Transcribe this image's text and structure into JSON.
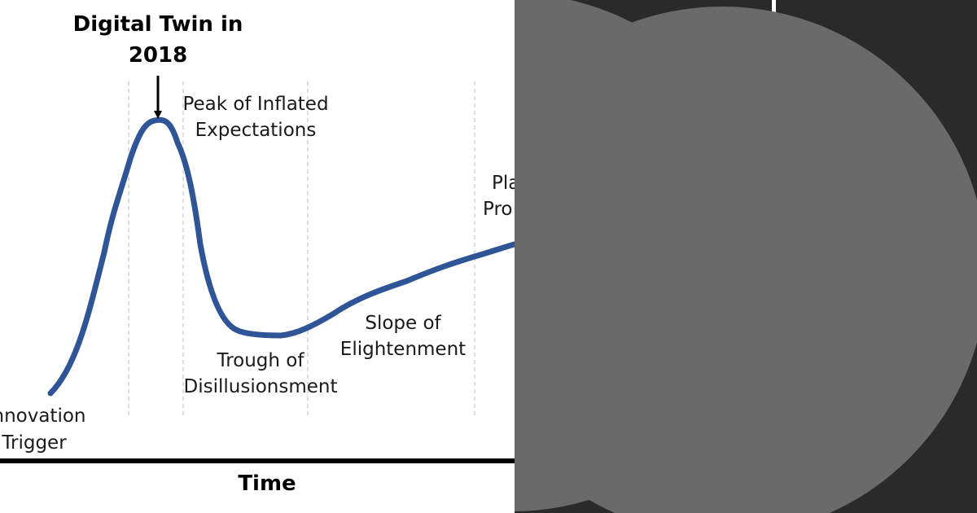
{
  "diagram": {
    "annotation": {
      "line1": "Digital Twin in",
      "line2": "2018"
    },
    "phases": {
      "innovation_trigger": {
        "line1": "nnovation",
        "line2": "Trigger"
      },
      "peak": {
        "line1": "Peak of Inflated",
        "line2": "Expectations"
      },
      "trough": {
        "line1": "Trough of",
        "line2": "Disillusionsment"
      },
      "slope": {
        "line1": "Slope of",
        "line2": "Elightenment"
      },
      "plateau": {
        "line1": "Pla",
        "line2": "Pro"
      }
    },
    "x_axis_label": "Time",
    "colors": {
      "curve": "#2f5597",
      "axis": "#000000",
      "separator": "#c8c8c8"
    }
  },
  "right_panel": {
    "colors": {
      "background": "#2a2a2a",
      "disc": "#6a6a6a",
      "divider": "#ffffff"
    }
  }
}
